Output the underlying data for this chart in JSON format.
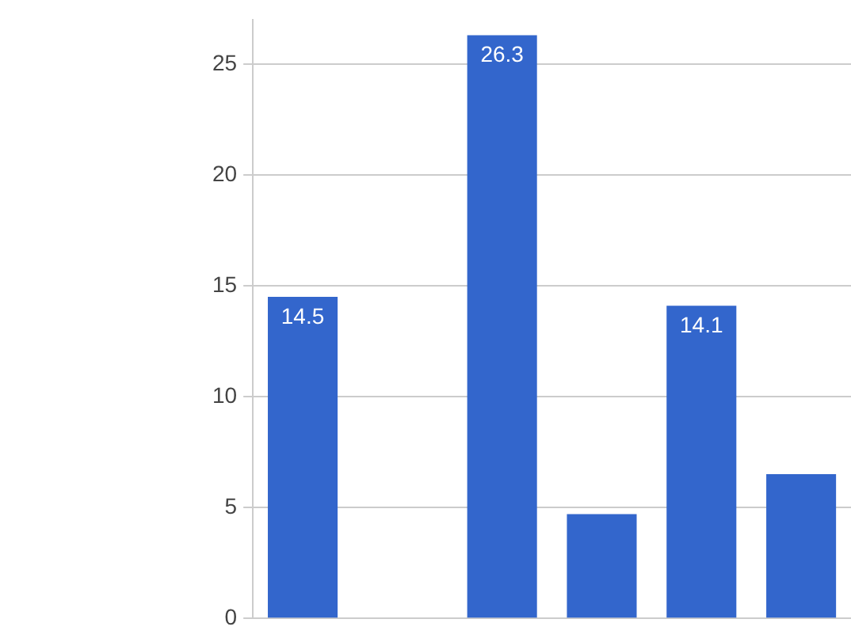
{
  "chart_data": {
    "type": "bar",
    "categories": [
      null,
      null,
      null,
      null,
      null,
      null
    ],
    "values": [
      14.5,
      null,
      26.3,
      4.7,
      14.1,
      6.5
    ],
    "value_labels": [
      "14.5",
      null,
      "26.3",
      null,
      "14.1",
      null
    ],
    "color": "#3366cc",
    "ylim": [
      0,
      27
    ],
    "yticks": [
      0,
      5,
      10,
      15,
      20,
      25
    ],
    "grid": "y",
    "legend": false
  }
}
